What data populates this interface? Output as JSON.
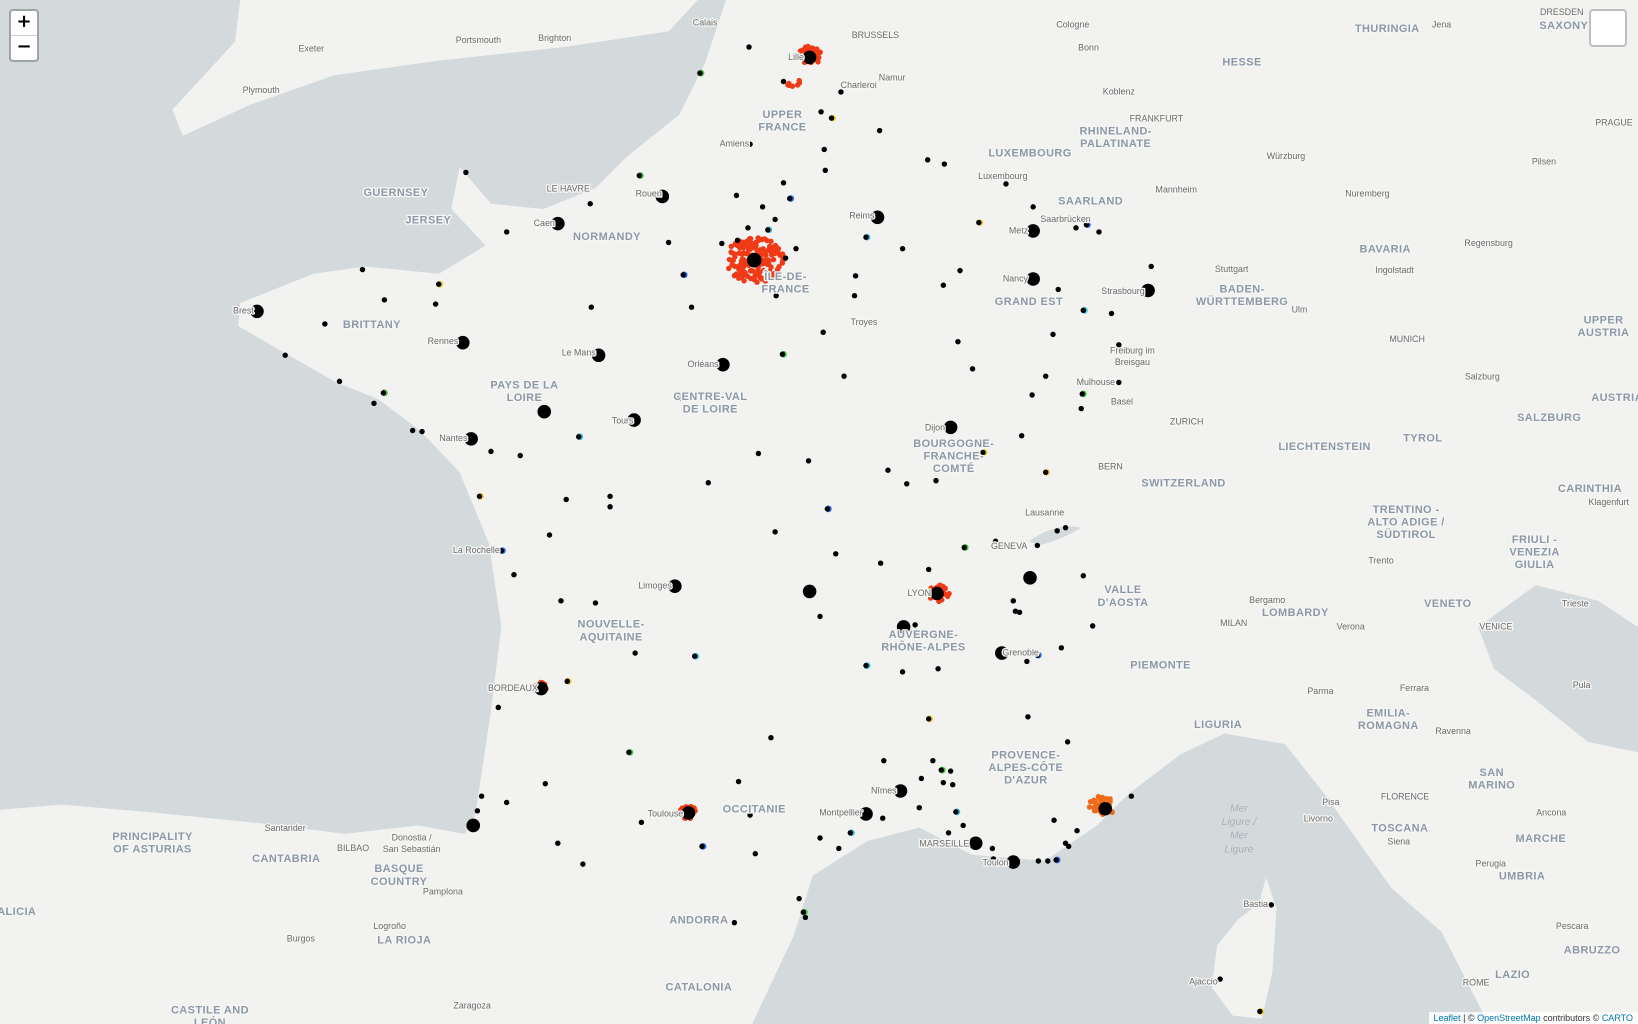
{
  "controls": {
    "zoom_in": "+",
    "zoom_out": "−"
  },
  "attribution": {
    "leaflet": "Leaflet",
    "sep": "| ©",
    "osm": "OpenStreetMap",
    "contrib": "contributors ©",
    "carto": "CARTO"
  },
  "regions": [
    [
      "UPPER",
      "FRANCE"
    ],
    [
      "NORMANDY"
    ],
    [
      "BRITTANY"
    ],
    [
      "PAYS DE LA",
      "LOIRE"
    ],
    [
      "CENTRE-VAL",
      "DE LOIRE"
    ],
    [
      "ÎLE-DE-",
      "FRANCE"
    ],
    [
      "GRAND EST"
    ],
    [
      "BOURGOGNE-",
      "FRANCHE-",
      "COMTÉ"
    ],
    [
      "NOUVELLE-",
      "AQUITAINE"
    ],
    [
      "AUVERGNE-",
      "RHÔNE-ALPES"
    ],
    [
      "OCCITANIE"
    ],
    [
      "PROVENCE-",
      "ALPES-CÔTE",
      "D'AZUR"
    ],
    [
      "HESSE"
    ],
    [
      "THURINGIA"
    ],
    [
      "SAXONY"
    ],
    [
      "RHINELAND-",
      "PALATINATE"
    ],
    [
      "LUXEMBOURG"
    ],
    [
      "SAARLAND"
    ],
    [
      "BADEN-",
      "WÜRTTEMBERG"
    ],
    [
      "BAVARIA"
    ],
    [
      "UPPER",
      "AUSTRIA"
    ],
    [
      "AUSTRIA"
    ],
    [
      "SALZBURG"
    ],
    [
      "TYROL"
    ],
    [
      "LIECHTENSTEIN"
    ],
    [
      "SWITZERLAND"
    ],
    [
      "CARINTHIA"
    ],
    [
      "TRENTINO -",
      "ALTO ADIGE /",
      "SÜDTIROL"
    ],
    [
      "FRIULI -",
      "VENEZIA",
      "GIULIA"
    ],
    [
      "VALLE",
      "D'AOSTA"
    ],
    [
      "VENETO"
    ],
    [
      "LOMBARDY"
    ],
    [
      "PIEMONTE"
    ],
    [
      "LIGURIA"
    ],
    [
      "EMILIA-",
      "ROMAGNA"
    ],
    [
      "SAN",
      "MARINO"
    ],
    [
      "TOSCANA"
    ],
    [
      "MARCHE"
    ],
    [
      "UMBRIA"
    ],
    [
      "ABRUZZO"
    ],
    [
      "LAZIO"
    ],
    [
      "PRINCIPALITY",
      "OF ASTURIAS"
    ],
    [
      "CANTABRIA"
    ],
    [
      "BASQUE",
      "COUNTRY"
    ],
    [
      "LA RIOJA"
    ],
    [
      "CASTILE AND",
      "LEÓN"
    ],
    [
      "ANDORRA"
    ],
    [
      "CATALONIA"
    ],
    [
      "GUERNSEY"
    ],
    [
      "JERSEY"
    ],
    [
      "ALICIA"
    ]
  ],
  "seas": [
    [
      "Mer",
      "Ligure /",
      "Mer",
      "Ligure"
    ]
  ],
  "cities": [
    [
      "Exeter"
    ],
    [
      "Portsmouth"
    ],
    [
      "Brighton"
    ],
    [
      "Plymouth"
    ],
    [
      "Calais"
    ],
    [
      "BRUSSELS"
    ],
    [
      "Cologne"
    ],
    [
      "Bonn"
    ],
    [
      "Namur"
    ],
    [
      "Charleroi"
    ],
    [
      "Koblenz"
    ],
    [
      "FRANKFURT"
    ],
    [
      "Würzburg"
    ],
    [
      "Mannheim"
    ],
    [
      "Nuremberg"
    ],
    [
      "Luxembourg"
    ],
    [
      "Saarbrücken"
    ],
    [
      "Stuttgart"
    ],
    [
      "Ingolstadt"
    ],
    [
      "Regensburg"
    ],
    [
      "Strasbourg"
    ],
    [
      "Ulm"
    ],
    [
      "MUNICH"
    ],
    [
      "Freiburg im",
      "Breisgau"
    ],
    [
      "Mulhouse"
    ],
    [
      "Basel"
    ],
    [
      "ZURICH"
    ],
    [
      "BERN"
    ],
    [
      "Lausanne"
    ],
    [
      "GENEVA"
    ],
    [
      "Salzburg"
    ],
    [
      "PRAGUE"
    ],
    [
      "Pilsen"
    ],
    [
      "DRESDEN"
    ],
    [
      "Jena"
    ],
    [
      "Klagenfurt"
    ],
    [
      "Trento"
    ],
    [
      "Bergamo"
    ],
    [
      "MILAN"
    ],
    [
      "Verona"
    ],
    [
      "VENICE"
    ],
    [
      "Trieste"
    ],
    [
      "Parma"
    ],
    [
      "Ferrara"
    ],
    [
      "Ravenna"
    ],
    [
      "Pula"
    ],
    [
      "FLORENCE"
    ],
    [
      "Pisa"
    ],
    [
      "Livorno"
    ],
    [
      "Siena"
    ],
    [
      "Perugia"
    ],
    [
      "Ancona"
    ],
    [
      "Pescara"
    ],
    [
      "ROME"
    ],
    [
      "Bastia"
    ],
    [
      "Ajaccio"
    ],
    [
      "LE HAVRE"
    ],
    [
      "Rouen"
    ],
    [
      "Caen"
    ],
    [
      "Amiens"
    ],
    [
      "Lille"
    ],
    [
      "Reims"
    ],
    [
      "Metz"
    ],
    [
      "Nancy"
    ],
    [
      "Troyes"
    ],
    [
      "Brest"
    ],
    [
      "Rennes"
    ],
    [
      "Le Mans"
    ],
    [
      "Orléans"
    ],
    [
      "Tours"
    ],
    [
      "Nantes"
    ],
    [
      "Dijon"
    ],
    [
      "La Rochelle"
    ],
    [
      "Limoges"
    ],
    [
      "LYON"
    ],
    [
      "Grenoble"
    ],
    [
      "BORDEAUX"
    ],
    [
      "Toulouse"
    ],
    [
      "Montpellier"
    ],
    [
      "Nîmes"
    ],
    [
      "MARSEILLE"
    ],
    [
      "Toulon"
    ],
    [
      "Santander"
    ],
    [
      "BILBAO"
    ],
    [
      "Donostia /",
      "San Sebastián"
    ],
    [
      "Pamplona"
    ],
    [
      "Logroño"
    ],
    [
      "Burgos"
    ],
    [
      "Zaragoza"
    ]
  ]
}
